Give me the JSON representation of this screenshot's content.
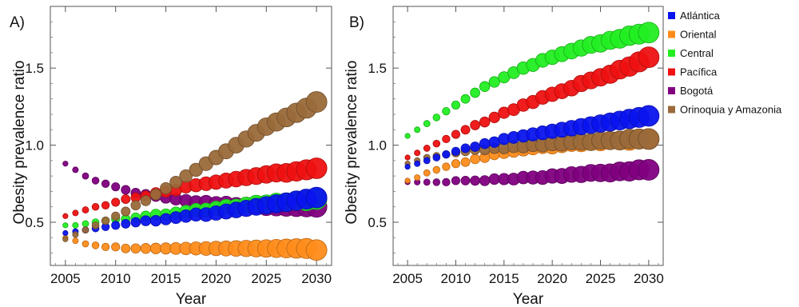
{
  "chart_data": [
    {
      "type": "scatter",
      "panel_label": "A)",
      "xlabel": "Year",
      "ylabel": "Obesity prevalence ratio",
      "xlim": [
        2003.5,
        2031.5
      ],
      "ylim": [
        0.22,
        1.9
      ],
      "xticks": [
        2005,
        2010,
        2015,
        2020,
        2025,
        2030
      ],
      "yticks": [
        0.5,
        1.0,
        1.5
      ],
      "ytick_labels": [
        "0.5",
        "1.0",
        "1.5"
      ],
      "grid": false,
      "marker_size_grows_over_time": true,
      "x": [
        2005,
        2006,
        2007,
        2008,
        2009,
        2010,
        2011,
        2012,
        2013,
        2014,
        2015,
        2016,
        2017,
        2018,
        2019,
        2020,
        2021,
        2022,
        2023,
        2024,
        2025,
        2026,
        2027,
        2028,
        2029,
        2030
      ],
      "series": [
        {
          "name": "Oriental",
          "color": "#ff8c1a",
          "values": [
            0.4,
            0.38,
            0.36,
            0.35,
            0.34,
            0.34,
            0.33,
            0.33,
            0.33,
            0.33,
            0.33,
            0.33,
            0.33,
            0.33,
            0.33,
            0.33,
            0.33,
            0.33,
            0.33,
            0.33,
            0.33,
            0.33,
            0.33,
            0.33,
            0.33,
            0.32
          ]
        },
        {
          "name": "Bogotá",
          "color": "#800080",
          "values": [
            0.88,
            0.84,
            0.8,
            0.77,
            0.75,
            0.73,
            0.71,
            0.69,
            0.68,
            0.67,
            0.66,
            0.65,
            0.64,
            0.63,
            0.63,
            0.62,
            0.62,
            0.61,
            0.61,
            0.61,
            0.6,
            0.6,
            0.6,
            0.6,
            0.6,
            0.6
          ]
        },
        {
          "name": "Pacífica",
          "color": "#ee1111",
          "values": [
            0.54,
            0.56,
            0.58,
            0.6,
            0.61,
            0.63,
            0.65,
            0.66,
            0.67,
            0.69,
            0.7,
            0.71,
            0.73,
            0.74,
            0.75,
            0.76,
            0.77,
            0.78,
            0.79,
            0.8,
            0.81,
            0.82,
            0.82,
            0.83,
            0.84,
            0.85
          ]
        },
        {
          "name": "Central",
          "color": "#22ee22",
          "values": [
            0.48,
            0.48,
            0.49,
            0.5,
            0.51,
            0.52,
            0.52,
            0.53,
            0.54,
            0.55,
            0.55,
            0.56,
            0.57,
            0.58,
            0.58,
            0.59,
            0.6,
            0.6,
            0.61,
            0.62,
            0.62,
            0.63,
            0.63,
            0.64,
            0.64,
            0.65
          ]
        },
        {
          "name": "Atlántica",
          "color": "#0a14ee",
          "values": [
            0.43,
            0.44,
            0.45,
            0.46,
            0.47,
            0.48,
            0.49,
            0.5,
            0.51,
            0.51,
            0.52,
            0.53,
            0.54,
            0.55,
            0.55,
            0.56,
            0.57,
            0.58,
            0.59,
            0.6,
            0.61,
            0.62,
            0.63,
            0.64,
            0.65,
            0.66
          ]
        },
        {
          "name": "Orinoquia y Amazonia",
          "color": "#9a6a3a",
          "values": [
            0.39,
            0.42,
            0.45,
            0.48,
            0.51,
            0.54,
            0.57,
            0.61,
            0.64,
            0.68,
            0.72,
            0.76,
            0.8,
            0.84,
            0.88,
            0.92,
            0.96,
            1.0,
            1.04,
            1.08,
            1.12,
            1.15,
            1.18,
            1.21,
            1.24,
            1.28
          ]
        }
      ]
    },
    {
      "type": "scatter",
      "panel_label": "B)",
      "xlabel": "Year",
      "ylabel": "Obesity prevalence ratio",
      "xlim": [
        2003.5,
        2031.5
      ],
      "ylim": [
        0.22,
        1.9
      ],
      "xticks": [
        2005,
        2010,
        2015,
        2020,
        2025,
        2030
      ],
      "yticks": [
        0.5,
        1.0,
        1.5
      ],
      "ytick_labels": [
        "0.5",
        "1.0",
        "1.5"
      ],
      "grid": false,
      "marker_size_grows_over_time": true,
      "x": [
        2005,
        2006,
        2007,
        2008,
        2009,
        2010,
        2011,
        2012,
        2013,
        2014,
        2015,
        2016,
        2017,
        2018,
        2019,
        2020,
        2021,
        2022,
        2023,
        2024,
        2025,
        2026,
        2027,
        2028,
        2029,
        2030
      ],
      "series": [
        {
          "name": "Bogotá",
          "color": "#800080",
          "values": [
            0.76,
            0.76,
            0.76,
            0.76,
            0.76,
            0.77,
            0.77,
            0.77,
            0.77,
            0.78,
            0.78,
            0.78,
            0.79,
            0.79,
            0.79,
            0.8,
            0.8,
            0.81,
            0.81,
            0.82,
            0.82,
            0.82,
            0.83,
            0.83,
            0.84,
            0.84
          ]
        },
        {
          "name": "Oriental",
          "color": "#ff8c1a",
          "values": [
            0.77,
            0.79,
            0.82,
            0.84,
            0.86,
            0.88,
            0.89,
            0.91,
            0.92,
            0.94,
            0.95,
            0.96,
            0.97,
            0.98,
            0.99,
            0.99,
            1.0,
            1.01,
            1.01,
            1.02,
            1.02,
            1.03,
            1.03,
            1.03,
            1.04,
            1.04
          ]
        },
        {
          "name": "Orinoquia y Amazonia",
          "color": "#9a6a3a",
          "values": [
            0.88,
            0.9,
            0.92,
            0.93,
            0.94,
            0.95,
            0.96,
            0.97,
            0.97,
            0.98,
            0.98,
            0.99,
            0.99,
            1.0,
            1.0,
            1.01,
            1.01,
            1.02,
            1.02,
            1.02,
            1.03,
            1.03,
            1.03,
            1.04,
            1.04,
            1.04
          ]
        },
        {
          "name": "Atlántica",
          "color": "#0a14ee",
          "values": [
            0.86,
            0.88,
            0.9,
            0.92,
            0.94,
            0.96,
            0.98,
            0.99,
            1.01,
            1.02,
            1.04,
            1.05,
            1.06,
            1.07,
            1.08,
            1.09,
            1.1,
            1.11,
            1.12,
            1.13,
            1.14,
            1.15,
            1.16,
            1.17,
            1.18,
            1.19
          ]
        },
        {
          "name": "Pacífica",
          "color": "#ee1111",
          "values": [
            0.92,
            0.95,
            0.98,
            1.01,
            1.04,
            1.07,
            1.1,
            1.13,
            1.15,
            1.18,
            1.21,
            1.23,
            1.26,
            1.28,
            1.31,
            1.33,
            1.35,
            1.37,
            1.4,
            1.42,
            1.44,
            1.46,
            1.49,
            1.51,
            1.54,
            1.57
          ]
        },
        {
          "name": "Central",
          "color": "#22ee22",
          "values": [
            1.06,
            1.1,
            1.14,
            1.18,
            1.22,
            1.26,
            1.3,
            1.34,
            1.38,
            1.41,
            1.44,
            1.47,
            1.5,
            1.52,
            1.55,
            1.57,
            1.59,
            1.61,
            1.63,
            1.65,
            1.66,
            1.68,
            1.69,
            1.71,
            1.72,
            1.73
          ]
        }
      ]
    }
  ],
  "legend": {
    "placement": "right",
    "items": [
      {
        "label": "Atlántica",
        "color": "#0a14ee"
      },
      {
        "label": "Oriental",
        "color": "#ff8c1a"
      },
      {
        "label": "Central",
        "color": "#22ee22"
      },
      {
        "label": "Pacífica",
        "color": "#ee1111"
      },
      {
        "label": "Bogotá",
        "color": "#800080"
      },
      {
        "label": "Orinoquia y Amazonia",
        "color": "#9a6a3a"
      }
    ]
  }
}
